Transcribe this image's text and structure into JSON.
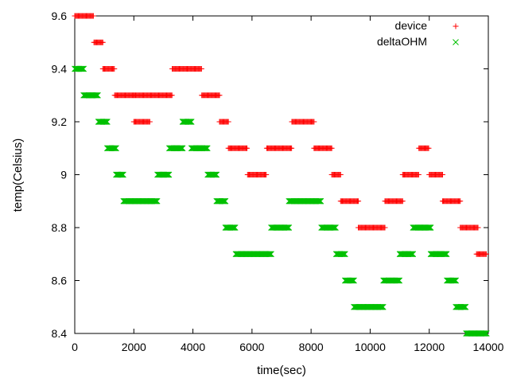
{
  "chart_data": {
    "type": "scatter",
    "xlabel": "time(sec)",
    "ylabel": "temp(Celsius)",
    "xlim": [
      0,
      14000
    ],
    "ylim": [
      8.4,
      9.6
    ],
    "x_ticks": [
      "0",
      "2000",
      "4000",
      "6000",
      "8000",
      "10000",
      "12000",
      "14000"
    ],
    "y_ticks": [
      "8.4",
      "8.6",
      "8.8",
      "9",
      "9.2",
      "9.4",
      "9.6"
    ],
    "legend_position": "top-right",
    "grid": false,
    "series": [
      {
        "name": "device",
        "marker": "plus",
        "color": "#ff0000",
        "segments": [
          [
            0,
            650,
            9.6
          ],
          [
            650,
            950,
            9.5
          ],
          [
            950,
            1350,
            9.4
          ],
          [
            1350,
            2000,
            9.3
          ],
          [
            2000,
            2550,
            9.2
          ],
          [
            2000,
            3300,
            9.3
          ],
          [
            3300,
            4300,
            9.4
          ],
          [
            4300,
            4900,
            9.3
          ],
          [
            4900,
            5200,
            9.2
          ],
          [
            5200,
            5850,
            9.1
          ],
          [
            5850,
            6500,
            9.0
          ],
          [
            6500,
            7350,
            9.1
          ],
          [
            7350,
            8100,
            9.2
          ],
          [
            8100,
            8700,
            9.1
          ],
          [
            8700,
            9000,
            9.0
          ],
          [
            9000,
            9600,
            8.9
          ],
          [
            9600,
            10500,
            8.8
          ],
          [
            10500,
            11100,
            8.9
          ],
          [
            11100,
            11650,
            9.0
          ],
          [
            11650,
            12000,
            9.1
          ],
          [
            12000,
            12450,
            9.0
          ],
          [
            12450,
            13050,
            8.9
          ],
          [
            13050,
            13650,
            8.8
          ],
          [
            13600,
            13950,
            8.7
          ]
        ]
      },
      {
        "name": "deltaOHM",
        "marker": "cross",
        "color": "#00c000",
        "segments": [
          [
            0,
            300,
            9.4
          ],
          [
            300,
            800,
            9.3
          ],
          [
            800,
            1100,
            9.2
          ],
          [
            1100,
            1400,
            9.1
          ],
          [
            1400,
            1650,
            9.0
          ],
          [
            1650,
            2800,
            8.9
          ],
          [
            2800,
            3200,
            9.0
          ],
          [
            3200,
            3650,
            9.1
          ],
          [
            3650,
            3950,
            9.2
          ],
          [
            3950,
            4500,
            9.1
          ],
          [
            4500,
            4800,
            9.0
          ],
          [
            4800,
            5100,
            8.9
          ],
          [
            5100,
            5450,
            8.8
          ],
          [
            5450,
            6650,
            8.7
          ],
          [
            6650,
            7250,
            8.8
          ],
          [
            7250,
            8350,
            8.9
          ],
          [
            8350,
            8850,
            8.8
          ],
          [
            8850,
            9150,
            8.7
          ],
          [
            9150,
            9450,
            8.6
          ],
          [
            9450,
            10450,
            8.5
          ],
          [
            10450,
            11000,
            8.6
          ],
          [
            11000,
            11450,
            8.7
          ],
          [
            11450,
            12050,
            8.8
          ],
          [
            12050,
            12600,
            8.7
          ],
          [
            12600,
            12900,
            8.6
          ],
          [
            12900,
            13250,
            8.5
          ],
          [
            13250,
            13950,
            8.4
          ]
        ]
      }
    ]
  }
}
